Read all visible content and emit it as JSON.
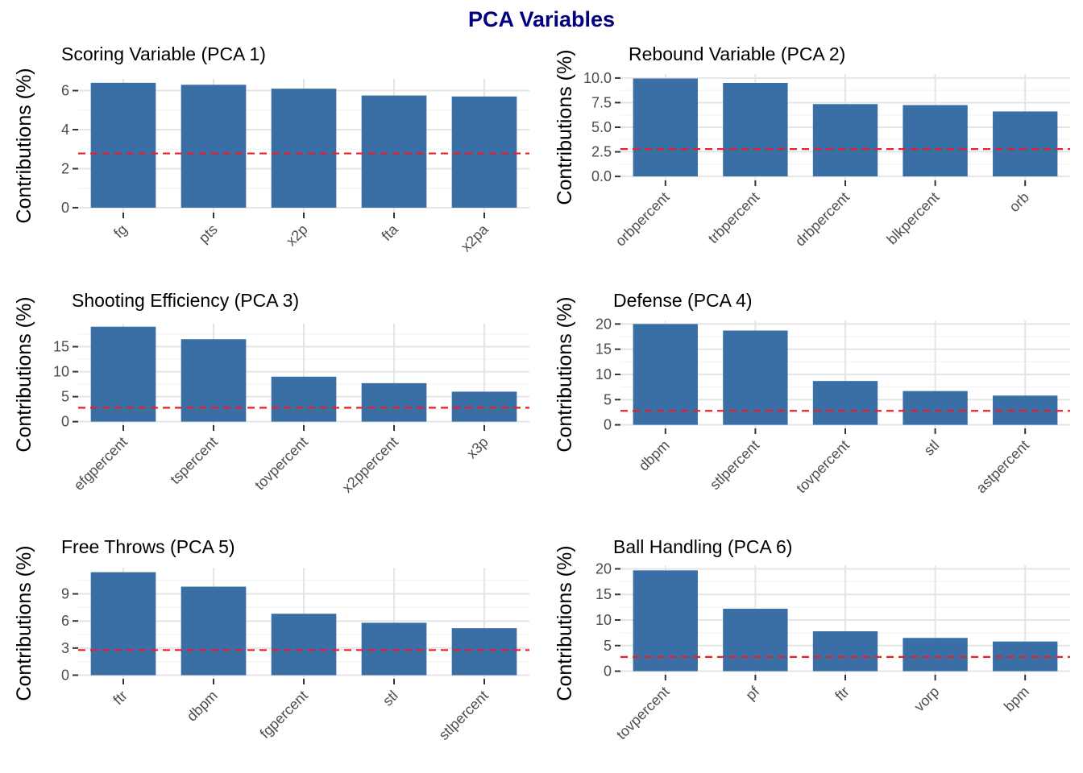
{
  "figure_title": "PCA Variables",
  "style": {
    "bar_color": "#3a6fa6",
    "reference_line_color": "#ee1c25",
    "title_color": "#000080"
  },
  "chart_data": [
    {
      "type": "bar",
      "title": "Scoring Variable (PCA 1)",
      "ylabel": "Contributions (%)",
      "categories": [
        "fg",
        "pts",
        "x2p",
        "fta",
        "x2pa"
      ],
      "values": [
        6.4,
        6.3,
        6.1,
        5.75,
        5.7
      ],
      "ylim": [
        -0.25,
        6.6
      ],
      "yticks": [
        0,
        2,
        4,
        6
      ],
      "ytick_labels": [
        "0",
        "2",
        "4",
        "6"
      ],
      "reference_line": 2.78,
      "grid": true
    },
    {
      "type": "bar",
      "title": "Rebound Variable (PCA 2)",
      "ylabel": "Contributions (%)",
      "categories": [
        "orbpercent",
        "trbpercent",
        "drbpercent",
        "blkpercent",
        "orb"
      ],
      "values": [
        9.95,
        9.5,
        7.35,
        7.25,
        6.6
      ],
      "ylim": [
        -0.4,
        10.4
      ],
      "yticks": [
        0,
        2.5,
        5,
        7.5,
        10
      ],
      "ytick_labels": [
        "0.0",
        "2.5",
        "5.0",
        "7.5",
        "10.0"
      ],
      "reference_line": 2.78,
      "grid": true
    },
    {
      "type": "bar",
      "title": "Shooting Efficiency (PCA 3)",
      "ylabel": "Contributions (%)",
      "categories": [
        "efgpercent",
        "tspercent",
        "tovpercent",
        "x2ppercent",
        "x3p"
      ],
      "values": [
        19.0,
        16.5,
        9.0,
        7.7,
        6.0
      ],
      "ylim": [
        -0.7,
        19.6
      ],
      "yticks": [
        0,
        5,
        10,
        15
      ],
      "ytick_labels": [
        "0",
        "5",
        "10",
        "15"
      ],
      "reference_line": 2.78,
      "grid": true
    },
    {
      "type": "bar",
      "title": "Defense (PCA 4)",
      "ylabel": "Contributions (%)",
      "categories": [
        "dbpm",
        "stlpercent",
        "tovpercent",
        "stl",
        "astpercent"
      ],
      "values": [
        20.0,
        18.7,
        8.7,
        6.7,
        5.8
      ],
      "ylim": [
        -0.7,
        20.7
      ],
      "yticks": [
        0,
        5,
        10,
        15,
        20
      ],
      "ytick_labels": [
        "0",
        "5",
        "10",
        "15",
        "20"
      ],
      "reference_line": 2.78,
      "grid": true
    },
    {
      "type": "bar",
      "title": "Free Throws (PCA 5)",
      "ylabel": "Contributions (%)",
      "categories": [
        "ftr",
        "dbpm",
        "fgpercent",
        "stl",
        "stlpercent"
      ],
      "values": [
        11.4,
        9.8,
        6.8,
        5.8,
        5.2
      ],
      "ylim": [
        -0.4,
        11.9
      ],
      "yticks": [
        0,
        3,
        6,
        9
      ],
      "ytick_labels": [
        "0",
        "3",
        "6",
        "9"
      ],
      "reference_line": 2.78,
      "grid": true
    },
    {
      "type": "bar",
      "title": "Ball Handling (PCA 6)",
      "ylabel": "Contributions (%)",
      "categories": [
        "tovpercent",
        "pf",
        "ftr",
        "vorp",
        "bpm"
      ],
      "values": [
        19.7,
        12.2,
        7.8,
        6.5,
        5.8
      ],
      "ylim": [
        -0.7,
        20.7
      ],
      "yticks": [
        0,
        5,
        10,
        15,
        20
      ],
      "ytick_labels": [
        "0",
        "5",
        "10",
        "15",
        "20"
      ],
      "reference_line": 2.78,
      "grid": true
    }
  ]
}
